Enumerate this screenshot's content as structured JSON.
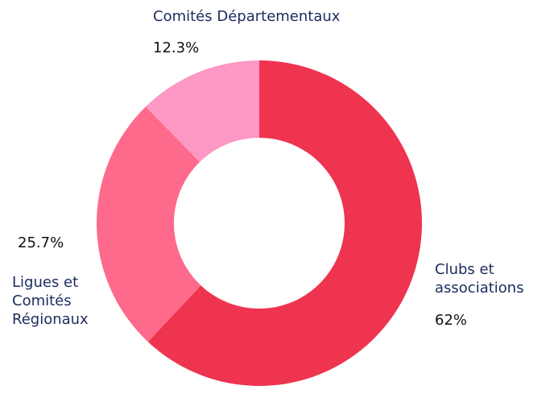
{
  "chart_data": {
    "type": "pie",
    "categories": [
      "Clubs et associations",
      "Ligues et Comités Régionaux",
      "Comités Départementaux"
    ],
    "values": [
      62,
      25.7,
      12.3
    ],
    "value_labels": [
      "62%",
      "25.7%",
      "12.3%"
    ],
    "colors": [
      "#ef3450",
      "#fd6a8c",
      "#fd97c3"
    ]
  }
}
